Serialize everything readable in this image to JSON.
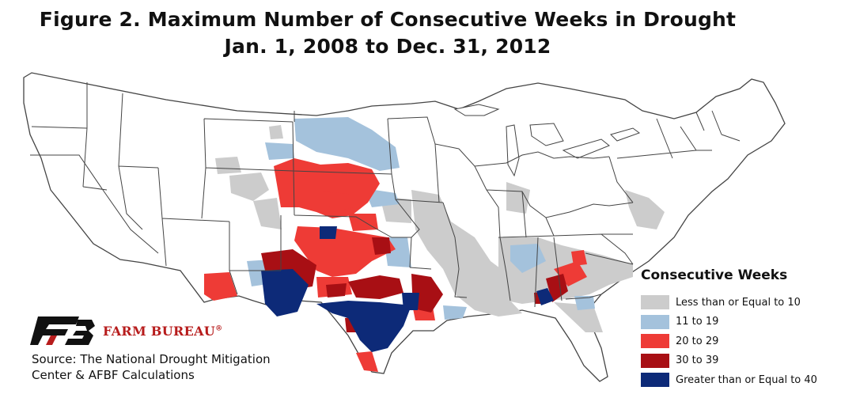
{
  "title": {
    "line1": "Figure 2. Maximum Number of Consecutive Weeks in Drought",
    "line2": "Jan. 1, 2008 to Dec. 31, 2012"
  },
  "legend": {
    "title": "Consecutive Weeks",
    "items": [
      {
        "label": "Less than or Equal to 10",
        "color": "#cccccc"
      },
      {
        "label": "11 to 19",
        "color": "#a4c2dc"
      },
      {
        "label": "20 to 29",
        "color": "#ee3b36"
      },
      {
        "label": "30 to 39",
        "color": "#a80f14"
      },
      {
        "label": "Greater than or Equal to 40",
        "color": "#0d2a78"
      }
    ]
  },
  "logo": {
    "name": "FARM BUREAU",
    "mark": "®",
    "icon": "farm-bureau-fb-logo-icon"
  },
  "source": {
    "line1": "Source: The National Drought Mitigation",
    "line2": "Center & AFBF Calculations"
  },
  "colors": {
    "state_fill": "#ffffff",
    "state_border": "#444444"
  }
}
